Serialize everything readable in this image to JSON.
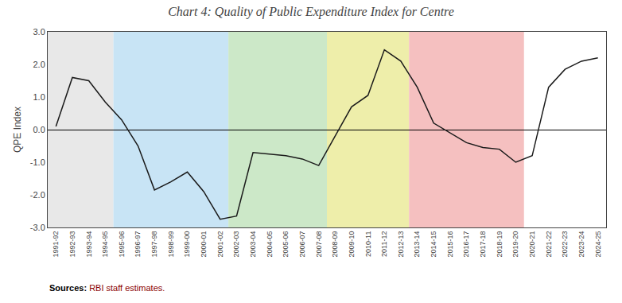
{
  "chart_data": {
    "type": "line",
    "title": "Chart 4: Quality of Public Expenditure Index for Centre",
    "ylabel": "QPE Index",
    "color": "#1a1a1a",
    "grid": false,
    "ylim": [
      -3.0,
      3.0
    ],
    "yticks": [
      {
        "value": -3.0,
        "label": "-3.0"
      },
      {
        "value": -2.0,
        "label": "-2.0"
      },
      {
        "value": -1.0,
        "label": "-1.0"
      },
      {
        "value": 0.0,
        "label": "0.0"
      },
      {
        "value": 1.0,
        "label": "1.0"
      },
      {
        "value": 2.0,
        "label": "2.0"
      },
      {
        "value": 3.0,
        "label": "3.0"
      }
    ],
    "shaded_regions": [
      {
        "start": "1991-92",
        "end": "1995-96",
        "color": "#e8e8e8"
      },
      {
        "start": "1995-96",
        "end": "2002-03",
        "color": "#c8e4f5"
      },
      {
        "start": "2002-03",
        "end": "2008-09",
        "color": "#cce8c8"
      },
      {
        "start": "2008-09",
        "end": "2013-14",
        "color": "#eeeeaa"
      },
      {
        "start": "2013-14",
        "end": "2020-21",
        "color": "#f5c0c0"
      }
    ],
    "annotations": [
      {
        "text": "Sources:",
        "color": "#000000"
      },
      {
        "text": "RBI staff estimates.",
        "color": "#8B0000"
      }
    ],
    "categories": [
      "1991-92",
      "1992-93",
      "1993-94",
      "1994-95",
      "1995-96",
      "1996-97",
      "1997-98",
      "1998-99",
      "1999-00",
      "2000-01",
      "2001-02",
      "2002-03",
      "2003-04",
      "2004-05",
      "2005-06",
      "2006-07",
      "2007-08",
      "2008-09",
      "2009-10",
      "2010-11",
      "2011-12",
      "2012-13",
      "2013-14",
      "2014-15",
      "2015-16",
      "2016-17",
      "2017-18",
      "2018-19",
      "2019-20",
      "2020-21",
      "2021-22",
      "2022-23",
      "2023-24",
      "2024-25"
    ],
    "values": [
      0.1,
      1.6,
      1.5,
      0.85,
      0.3,
      -0.5,
      -1.85,
      -1.6,
      -1.3,
      -1.9,
      -2.75,
      -2.65,
      -0.7,
      -0.75,
      -0.8,
      -0.9,
      -1.1,
      -0.2,
      0.7,
      1.05,
      2.45,
      2.1,
      1.3,
      0.2,
      -0.1,
      -0.4,
      -0.55,
      -0.6,
      -1.0,
      -0.8,
      1.3,
      1.85,
      2.1,
      2.2
    ]
  }
}
